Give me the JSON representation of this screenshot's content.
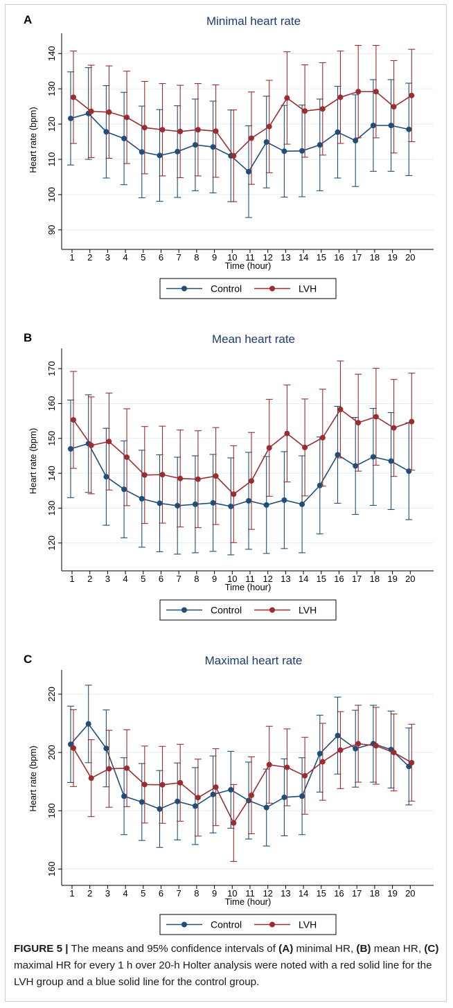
{
  "chart_data": [
    {
      "panel": "A",
      "title": "Minimal heart rate",
      "type": "line",
      "xlabel": "Time (hour)",
      "ylabel": "Heart rate (bpm)",
      "x": [
        1,
        2,
        3,
        4,
        5,
        6,
        7,
        8,
        9,
        10,
        11,
        12,
        13,
        14,
        15,
        16,
        17,
        18,
        19,
        20
      ],
      "ylim": [
        88,
        143
      ],
      "yticks": [
        90,
        100,
        110,
        120,
        130,
        140
      ],
      "grid": true,
      "legend_position": "bottom",
      "series": [
        {
          "name": "Control",
          "color": "#1f4e79",
          "mean": [
            121.6,
            123.0,
            117.8,
            115.9,
            112.1,
            111.1,
            112.2,
            114.1,
            113.5,
            111.0,
            106.5,
            114.9,
            112.3,
            112.4,
            114.1,
            117.7,
            115.3,
            119.6,
            119.6,
            118.5
          ],
          "lower": [
            108.4,
            110.0,
            104.7,
            102.8,
            99.1,
            98.1,
            99.2,
            101.1,
            100.5,
            98.0,
            93.5,
            101.9,
            99.3,
            99.4,
            101.1,
            104.7,
            102.3,
            106.6,
            106.6,
            105.4
          ],
          "upper": [
            134.8,
            136.0,
            130.9,
            129.0,
            125.1,
            124.1,
            125.2,
            127.1,
            126.5,
            124.0,
            119.5,
            127.9,
            125.3,
            125.4,
            127.1,
            130.7,
            128.3,
            132.6,
            132.6,
            131.6
          ]
        },
        {
          "name": "LVH",
          "color": "#9b2d30",
          "mean": [
            127.6,
            123.6,
            123.4,
            121.9,
            119.0,
            118.4,
            117.9,
            118.4,
            118.0,
            111.0,
            116.0,
            119.3,
            127.4,
            123.7,
            124.3,
            127.6,
            129.2,
            129.2,
            124.9,
            128.1
          ],
          "lower": [
            114.5,
            110.5,
            110.3,
            108.8,
            105.9,
            105.3,
            104.8,
            105.3,
            104.9,
            98.0,
            102.9,
            106.2,
            114.3,
            110.6,
            111.2,
            114.5,
            116.1,
            116.1,
            111.8,
            115.0
          ],
          "upper": [
            140.7,
            136.7,
            136.5,
            135.0,
            132.1,
            131.5,
            131.0,
            131.5,
            131.1,
            124.0,
            129.1,
            132.4,
            140.5,
            136.8,
            137.4,
            140.7,
            142.3,
            142.3,
            138.0,
            141.2
          ]
        }
      ]
    },
    {
      "panel": "B",
      "title": "Mean heart rate",
      "type": "line",
      "xlabel": "Time (hour)",
      "ylabel": "Heart rate (bpm)",
      "x": [
        1,
        2,
        3,
        4,
        5,
        6,
        7,
        8,
        9,
        10,
        11,
        12,
        13,
        14,
        15,
        16,
        17,
        18,
        19,
        20
      ],
      "ylim": [
        114,
        173
      ],
      "yticks": [
        120,
        130,
        140,
        150,
        160,
        170
      ],
      "grid": true,
      "legend_position": "bottom",
      "series": [
        {
          "name": "Control",
          "color": "#1f4e79",
          "mean": [
            147.0,
            148.5,
            139.0,
            135.4,
            132.7,
            131.4,
            130.7,
            131.1,
            131.5,
            130.5,
            132.1,
            130.9,
            132.3,
            131.1,
            136.5,
            145.3,
            142.1,
            144.7,
            143.5,
            140.6
          ],
          "lower": [
            133.0,
            134.5,
            125.1,
            121.5,
            118.8,
            117.5,
            116.8,
            117.2,
            117.6,
            116.6,
            118.2,
            117.0,
            118.4,
            117.2,
            122.6,
            131.4,
            128.2,
            130.8,
            129.6,
            126.7
          ],
          "upper": [
            161.0,
            162.5,
            152.9,
            149.3,
            146.6,
            145.3,
            144.6,
            145.0,
            145.4,
            144.4,
            146.0,
            144.8,
            146.2,
            145.0,
            150.4,
            159.2,
            156.0,
            158.6,
            157.4,
            154.5
          ]
        },
        {
          "name": "LVH",
          "color": "#9b2d30",
          "mean": [
            155.3,
            148.0,
            149.1,
            144.6,
            139.5,
            139.6,
            138.5,
            138.3,
            139.2,
            134.0,
            137.8,
            147.3,
            151.4,
            147.4,
            150.2,
            158.3,
            154.5,
            156.2,
            153.0,
            154.8
          ],
          "lower": [
            141.4,
            134.1,
            135.2,
            130.7,
            125.6,
            125.7,
            124.6,
            124.4,
            125.3,
            120.1,
            123.9,
            133.4,
            137.5,
            133.5,
            136.3,
            144.4,
            140.6,
            142.3,
            139.1,
            140.9
          ],
          "upper": [
            169.2,
            161.9,
            163.0,
            158.5,
            153.4,
            153.5,
            152.4,
            152.2,
            153.1,
            147.9,
            151.7,
            161.2,
            165.3,
            161.3,
            164.1,
            172.2,
            168.4,
            170.1,
            166.9,
            168.7
          ]
        }
      ]
    },
    {
      "panel": "C",
      "title": "Maximal heart rate",
      "type": "line",
      "xlabel": "Time (hour)",
      "ylabel": "Heart rate (bpm)",
      "x": [
        1,
        2,
        3,
        4,
        5,
        6,
        7,
        8,
        9,
        10,
        11,
        12,
        13,
        14,
        15,
        16,
        17,
        18,
        19,
        20
      ],
      "ylim": [
        157,
        225
      ],
      "yticks": [
        160,
        180,
        200,
        220
      ],
      "grid": true,
      "legend_position": "bottom",
      "series": [
        {
          "name": "Control",
          "color": "#1f4e79",
          "mean": [
            202.8,
            209.8,
            201.4,
            185.0,
            183.0,
            180.6,
            183.2,
            181.6,
            185.6,
            187.2,
            183.5,
            181.1,
            184.6,
            185.0,
            199.6,
            205.8,
            201.3,
            203.0,
            201.0,
            195.2
          ],
          "lower": [
            189.7,
            196.5,
            188.2,
            171.8,
            169.8,
            167.4,
            170.0,
            168.4,
            172.4,
            174.0,
            170.3,
            167.9,
            171.4,
            171.8,
            186.4,
            192.6,
            188.1,
            189.8,
            187.8,
            182.0
          ],
          "upper": [
            215.9,
            223.1,
            214.6,
            198.2,
            196.2,
            193.8,
            196.4,
            194.8,
            198.8,
            200.4,
            196.7,
            194.3,
            197.8,
            198.2,
            212.8,
            219.0,
            214.5,
            216.2,
            214.2,
            208.4
          ]
        },
        {
          "name": "LVH",
          "color": "#9b2d30",
          "mean": [
            201.5,
            191.2,
            194.4,
            194.6,
            189.0,
            188.9,
            189.6,
            184.5,
            188.1,
            175.8,
            185.3,
            195.8,
            194.9,
            192.0,
            196.8,
            200.8,
            203.0,
            202.3,
            200.0,
            196.5
          ],
          "lower": [
            188.3,
            178.0,
            181.2,
            181.4,
            175.8,
            175.7,
            176.4,
            171.3,
            174.9,
            162.6,
            172.1,
            182.6,
            181.7,
            178.8,
            183.6,
            187.6,
            189.8,
            189.1,
            186.8,
            183.3
          ],
          "upper": [
            214.7,
            204.4,
            207.6,
            207.8,
            202.2,
            202.1,
            202.8,
            197.7,
            201.3,
            189.0,
            198.5,
            209.0,
            208.1,
            205.2,
            210.0,
            214.0,
            216.2,
            215.5,
            213.2,
            209.7
          ]
        }
      ]
    }
  ],
  "caption": {
    "label": "FIGURE 5 |",
    "t1": " The means and 95% confidence intervals of ",
    "a": "(A)",
    "t2": " minimal HR, ",
    "b": "(B)",
    "t3": " mean HR, ",
    "c": "(C)",
    "t4": " maximal HR for every 1 h over 20-h Holter analysis were noted with a red solid line for the LVH group and a blue solid line for the control group."
  }
}
